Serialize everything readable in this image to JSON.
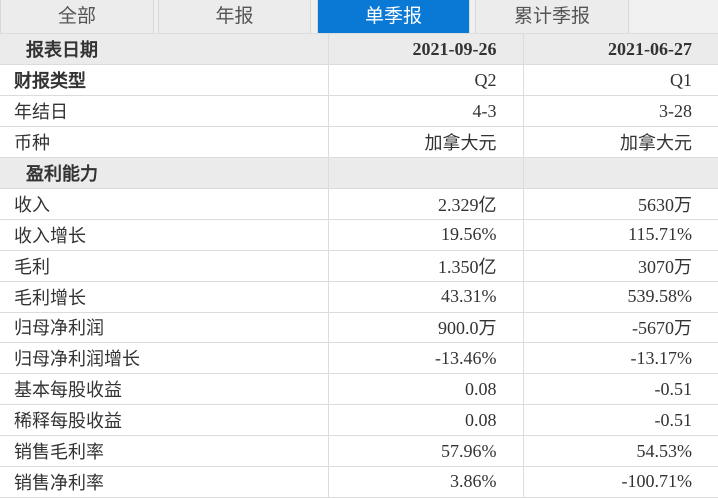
{
  "tabs": [
    {
      "label": "全部",
      "active": false
    },
    {
      "label": "年报",
      "active": false
    },
    {
      "label": "单季报",
      "active": true
    },
    {
      "label": "累计季报",
      "active": false
    }
  ],
  "colors": {
    "active_tab": "#0a79d6",
    "section_bg": "#ebebeb"
  },
  "header": {
    "label": "报表日期",
    "cols": [
      "2021-09-26",
      "2021-06-27"
    ]
  },
  "rows": [
    {
      "label": "财报类型",
      "values": [
        "Q2",
        "Q1"
      ],
      "type": "bold"
    },
    {
      "label": "年结日",
      "values": [
        "4-3",
        "3-28"
      ]
    },
    {
      "label": "币种",
      "values": [
        "加拿大元",
        "加拿大元"
      ]
    },
    {
      "label": "盈利能力",
      "values": [
        "",
        ""
      ],
      "type": "section"
    },
    {
      "label": "收入",
      "values": [
        "2.329亿",
        "5630万"
      ]
    },
    {
      "label": "收入增长",
      "values": [
        "19.56%",
        "115.71%"
      ]
    },
    {
      "label": "毛利",
      "values": [
        "1.350亿",
        "3070万"
      ]
    },
    {
      "label": "毛利增长",
      "values": [
        "43.31%",
        "539.58%"
      ]
    },
    {
      "label": "归母净利润",
      "values": [
        "900.0万",
        "-5670万"
      ]
    },
    {
      "label": "归母净利润增长",
      "values": [
        "-13.46%",
        "-13.17%"
      ]
    },
    {
      "label": "基本每股收益",
      "values": [
        "0.08",
        "-0.51"
      ]
    },
    {
      "label": "稀释每股收益",
      "values": [
        "0.08",
        "-0.51"
      ]
    },
    {
      "label": "销售毛利率",
      "values": [
        "57.96%",
        "54.53%"
      ]
    },
    {
      "label": "销售净利率",
      "values": [
        "3.86%",
        "-100.71%"
      ]
    }
  ]
}
